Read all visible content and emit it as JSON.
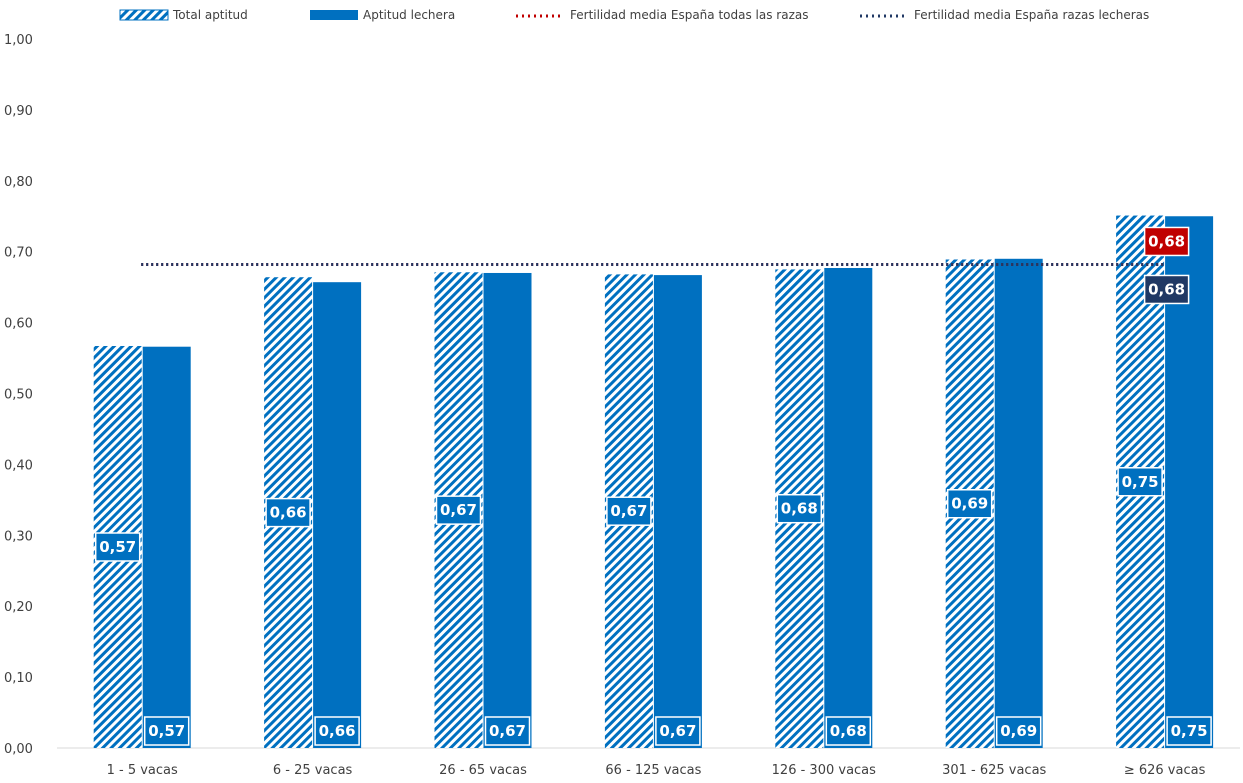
{
  "chart_data": {
    "type": "bar",
    "title": "",
    "xlabel": "",
    "ylabel": "",
    "ylim": [
      0,
      1
    ],
    "yticks": [
      "0,00",
      "0,10",
      "0,20",
      "0,30",
      "0,40",
      "0,50",
      "0,60",
      "0,70",
      "0,80",
      "0,90",
      "1,00"
    ],
    "categories": [
      "1 - 5 vacas",
      "6 - 25 vacas",
      "26 - 65 vacas",
      "66 - 125 vacas",
      "126 - 300 vacas",
      "301 - 625 vacas",
      "≥ 626 vacas"
    ],
    "series": [
      {
        "name": "Total aptitud",
        "style": "hatched",
        "color": "#0070C0",
        "values": [
          0.567,
          0.664,
          0.671,
          0.668,
          0.675,
          0.689,
          0.751
        ],
        "labels": [
          "0,57",
          "0,66",
          "0,67",
          "0,67",
          "0,68",
          "0,69",
          "0,75"
        ]
      },
      {
        "name": "Aptitud lechera",
        "style": "solid",
        "color": "#0070C0",
        "values": [
          0.566,
          0.657,
          0.67,
          0.667,
          0.677,
          0.69,
          0.75
        ],
        "labels": [
          "0,57",
          "0,66",
          "0,67",
          "0,67",
          "0,68",
          "0,69",
          "0,75"
        ]
      }
    ],
    "reference_lines": [
      {
        "name": "Fertilidad media España todas las razas",
        "value": 0.682,
        "label": "0,68",
        "color": "#C00000"
      },
      {
        "name": "Fertilidad media España razas lecheras",
        "value": 0.682,
        "label": "0,68",
        "color": "#203864"
      }
    ],
    "grid": false,
    "legend_position": "top"
  }
}
